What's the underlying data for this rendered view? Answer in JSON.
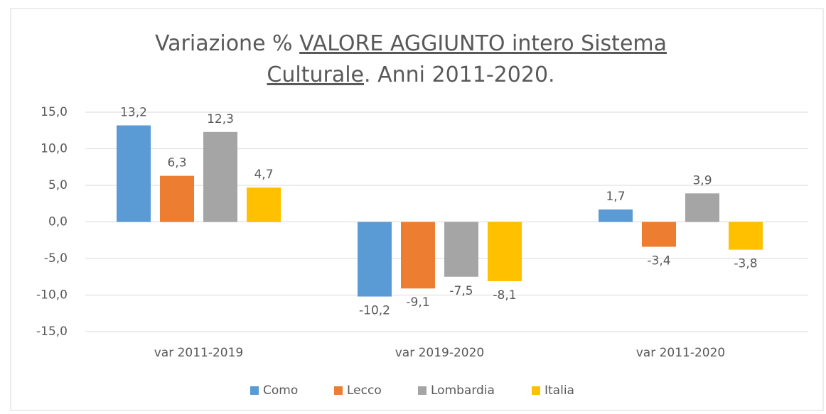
{
  "chart_data": {
    "type": "bar",
    "title": [
      "Variazione % ",
      "VALORE AGGIUNTO intero Sistema",
      "Culturale",
      ". Anni 2011-2020."
    ],
    "categories": [
      "var 2011-2019",
      "var 2019-2020",
      "var 2011-2020"
    ],
    "series": [
      {
        "name": "Como",
        "color": "#5b9bd5",
        "values": [
          13.2,
          -10.2,
          1.7
        ],
        "value_labels": [
          "13,2",
          "-10,2",
          "1,7"
        ]
      },
      {
        "name": "Lecco",
        "color": "#ed7d31",
        "values": [
          6.3,
          -9.1,
          -3.4
        ],
        "value_labels": [
          "6,3",
          "-9,1",
          "-3,4"
        ]
      },
      {
        "name": "Lombardia",
        "color": "#a5a5a5",
        "values": [
          12.3,
          -7.5,
          3.9
        ],
        "value_labels": [
          "12,3",
          "-7,5",
          "3,9"
        ]
      },
      {
        "name": "Italia",
        "color": "#ffc000",
        "values": [
          4.7,
          -8.1,
          -3.8
        ],
        "value_labels": [
          "4,7",
          "-8,1",
          "-3,8"
        ]
      }
    ],
    "ylim": [
      -15,
      15
    ],
    "yticks": [
      {
        "value": -15,
        "label": "-15,0"
      },
      {
        "value": -10,
        "label": "-10,0"
      },
      {
        "value": -5,
        "label": "-5,0"
      },
      {
        "value": 0,
        "label": "0,0"
      },
      {
        "value": 5,
        "label": "5,0"
      },
      {
        "value": 10,
        "label": "10,0"
      },
      {
        "value": 15,
        "label": "15,0"
      }
    ],
    "grid": true,
    "legend": "bottom"
  }
}
